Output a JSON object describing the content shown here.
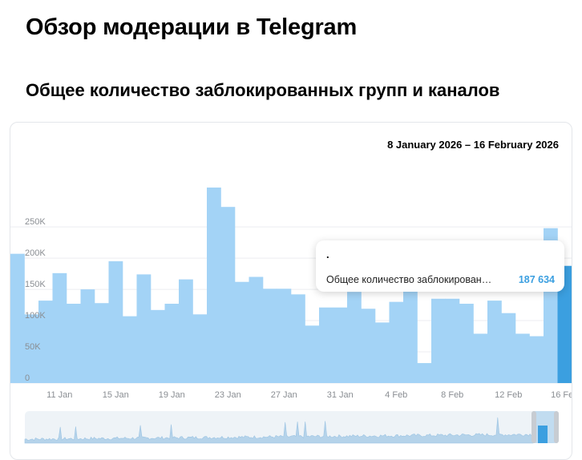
{
  "page": {
    "title": "Обзор модерации в Telegram",
    "section_title": "Общее количество заблокированных групп и каналов"
  },
  "date_range": "8 January 2026 – 16 February 2026",
  "tooltip": {
    "date": ".",
    "label": "Общее количество заблокирован…",
    "value": "187 634"
  },
  "colors": {
    "bar": "#a3d3f6",
    "bar_highlight": "#3b9fe0",
    "grid": "#eceef0",
    "axis_text": "#8a8e93",
    "navigator_bg": "#eef3f7"
  },
  "chart_data": {
    "type": "bar",
    "title": "Общее количество заблокированных групп и каналов",
    "x": [
      "2026-01-08",
      "2026-01-09",
      "2026-01-10",
      "2026-01-11",
      "2026-01-12",
      "2026-01-13",
      "2026-01-14",
      "2026-01-15",
      "2026-01-16",
      "2026-01-17",
      "2026-01-18",
      "2026-01-19",
      "2026-01-20",
      "2026-01-21",
      "2026-01-22",
      "2026-01-23",
      "2026-01-24",
      "2026-01-25",
      "2026-01-26",
      "2026-01-27",
      "2026-01-28",
      "2026-01-29",
      "2026-01-30",
      "2026-01-31",
      "2026-02-01",
      "2026-02-02",
      "2026-02-03",
      "2026-02-04",
      "2026-02-05",
      "2026-02-06",
      "2026-02-07",
      "2026-02-08",
      "2026-02-09",
      "2026-02-10",
      "2026-02-11",
      "2026-02-12",
      "2026-02-13",
      "2026-02-14",
      "2026-02-15",
      "2026-02-16"
    ],
    "values": [
      207000,
      110000,
      132000,
      176000,
      127000,
      150000,
      128000,
      195000,
      107000,
      174000,
      117000,
      127000,
      166000,
      110000,
      313000,
      282000,
      162000,
      170000,
      151000,
      151000,
      142000,
      92000,
      121000,
      121000,
      146000,
      119000,
      97000,
      130000,
      147000,
      32000,
      135000,
      135000,
      127000,
      79000,
      132000,
      112000,
      79000,
      75000,
      248000,
      187634
    ],
    "highlight_index": 39,
    "y_ticks": [
      "0",
      "50K",
      "100K",
      "150K",
      "200K",
      "250K"
    ],
    "y_tick_values": [
      0,
      50000,
      100000,
      150000,
      200000,
      250000
    ],
    "ylim": [
      0,
      340000
    ],
    "x_ticks": [
      "11 Jan",
      "15 Jan",
      "19 Jan",
      "23 Jan",
      "27 Jan",
      "31 Jan",
      "4 Feb",
      "8 Feb",
      "12 Feb",
      "16 Feb"
    ],
    "x_tick_indices": [
      3,
      7,
      11,
      15,
      19,
      23,
      27,
      31,
      35,
      39
    ],
    "grid": true,
    "legend": "none"
  }
}
